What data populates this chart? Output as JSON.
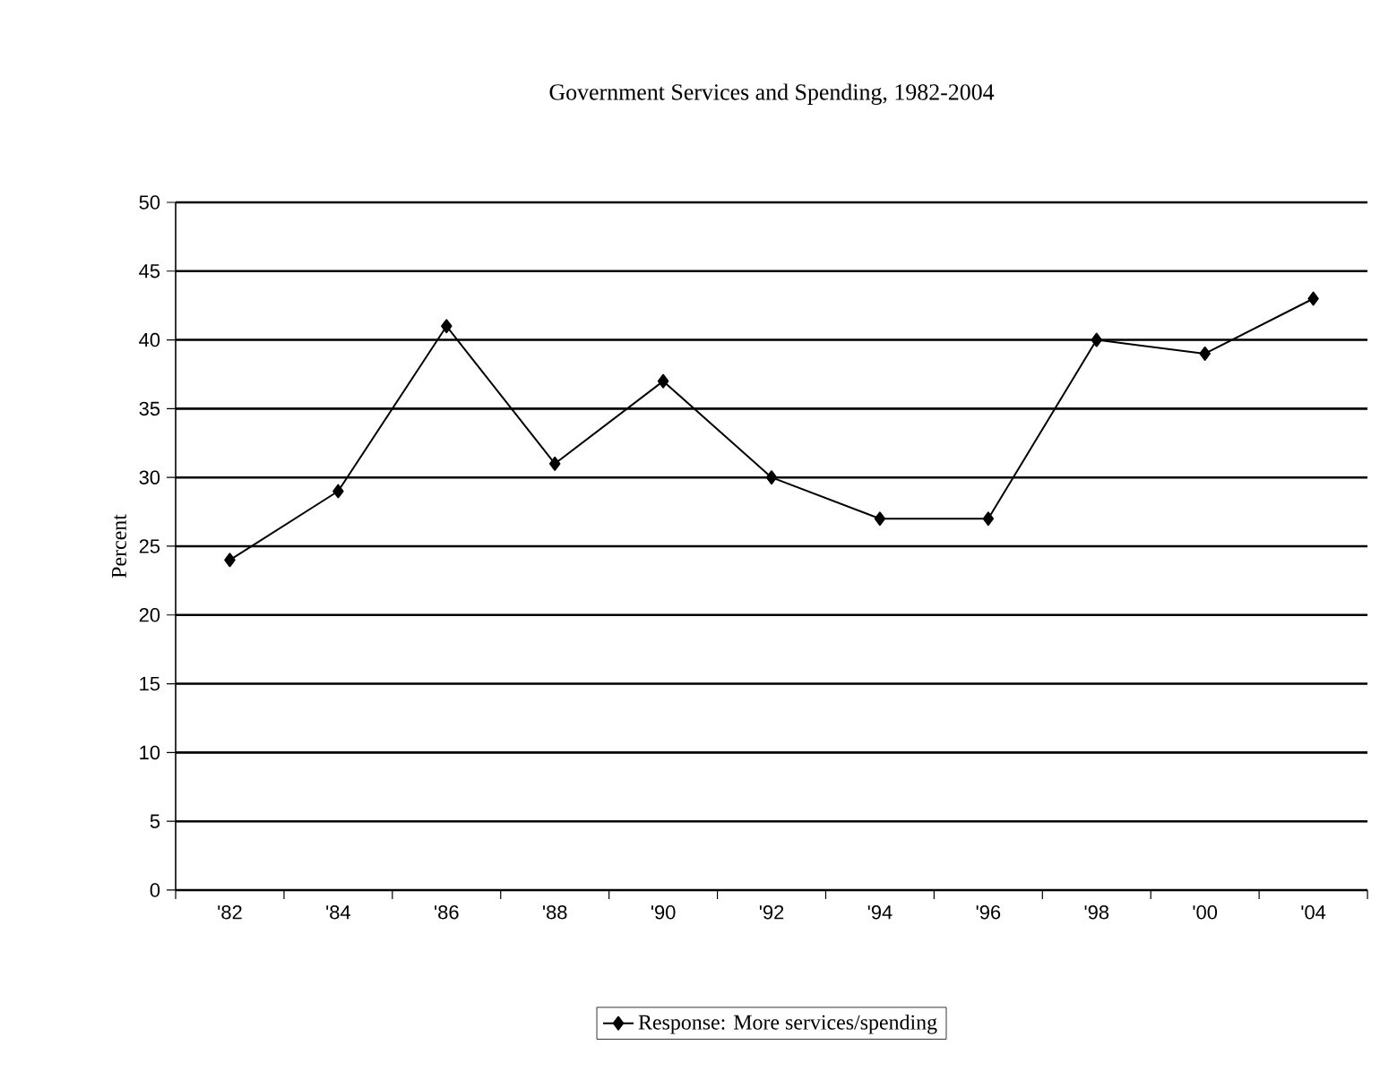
{
  "chart_data": {
    "type": "line",
    "title": "Government Services and Spending, 1982-2004",
    "ylabel": "Percent",
    "categories": [
      "'82",
      "'84",
      "'86",
      "'88",
      "'90",
      "'92",
      "'94",
      "'96",
      "'98",
      "'00",
      "'04"
    ],
    "series": [
      {
        "name": "Response: More services/spending",
        "color": "#000000",
        "values": [
          24,
          29,
          41,
          31,
          37,
          30,
          27,
          27,
          40,
          39,
          43
        ]
      }
    ],
    "ylim": [
      0,
      50
    ],
    "yticks": [
      0,
      5,
      10,
      15,
      20,
      25,
      30,
      35,
      40,
      45,
      50
    ],
    "grid": "y",
    "legend": "bottom",
    "marker": "diamond",
    "line_style": "solid"
  }
}
